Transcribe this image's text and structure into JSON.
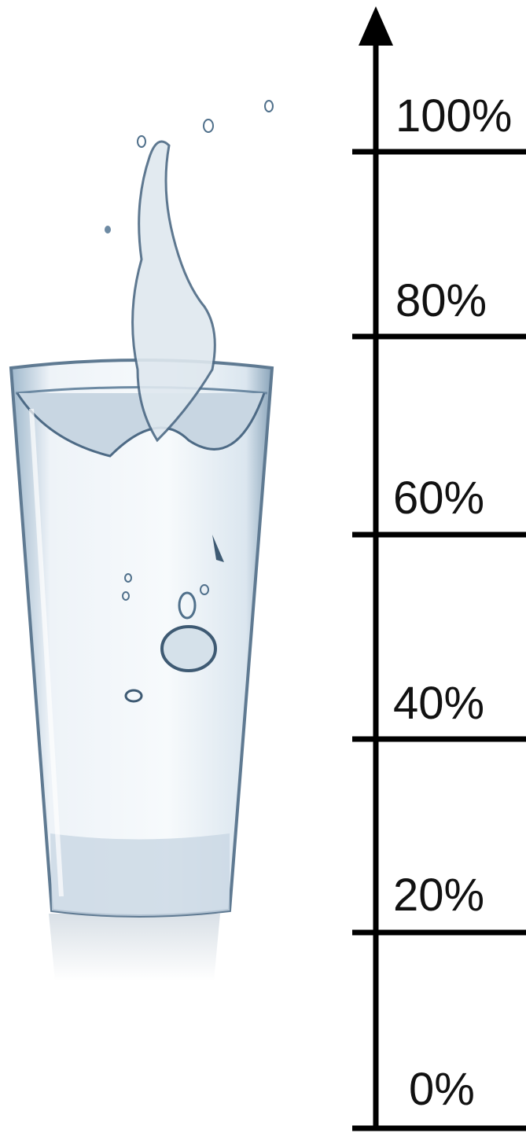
{
  "scale": {
    "labels": [
      "100%",
      "80%",
      "60%",
      "40%",
      "20%",
      "0%"
    ]
  }
}
